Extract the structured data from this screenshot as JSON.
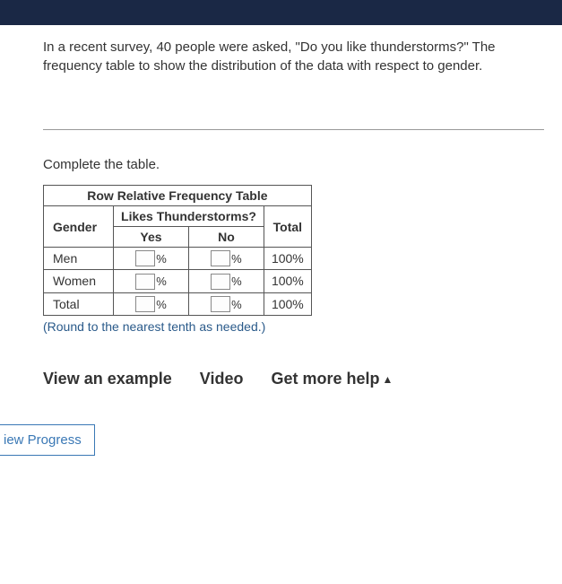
{
  "problem": {
    "text": "In a recent survey, 40 people were asked, \"Do you like thunderstorms?\" The frequency table to show the distribution of the data with respect to gender."
  },
  "instruction": "Complete the table.",
  "table": {
    "title": "Row Relative Frequency Table",
    "subheader": "Likes Thunderstorms?",
    "corner": "Gender",
    "columns": {
      "yes": "Yes",
      "no": "No",
      "total": "Total"
    },
    "rows": [
      {
        "label": "Men",
        "total": "100%"
      },
      {
        "label": "Women",
        "total": "100%"
      },
      {
        "label": "Total",
        "total": "100%"
      }
    ],
    "percent_sign": "%"
  },
  "round_note": "(Round to the nearest tenth as needed.)",
  "help": {
    "view_example": "View an example",
    "video": "Video",
    "get_more": "Get more help"
  },
  "progress_btn": "iew Progress",
  "colors": {
    "top_bar": "#1a2845",
    "note_color": "#2a5a8a",
    "btn_border": "#3a78b5"
  }
}
